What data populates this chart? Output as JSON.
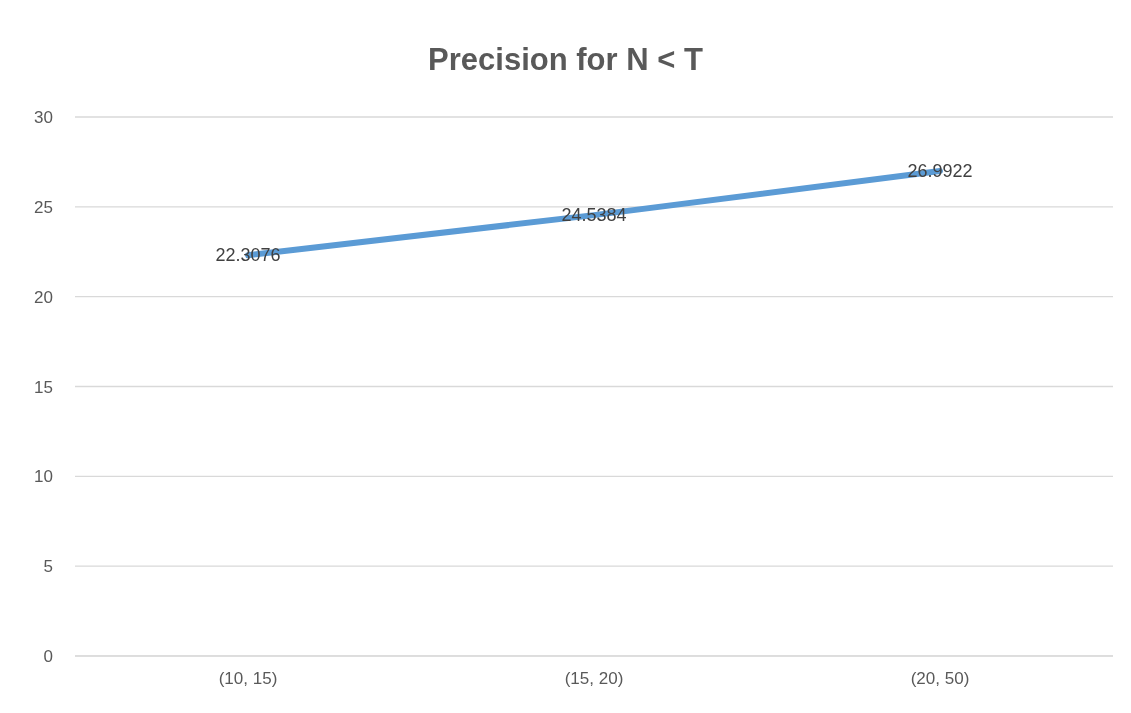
{
  "chart_data": {
    "type": "line",
    "title": "Precision for N < T",
    "categories": [
      "(10, 15)",
      "(15, 20)",
      "(20, 50)"
    ],
    "series": [
      {
        "color": "#5b9bd5",
        "values": [
          22.3076,
          24.5384,
          26.9922
        ]
      }
    ],
    "ylim": [
      0,
      30
    ],
    "yticks": [
      0,
      5,
      10,
      15,
      20,
      25,
      30
    ],
    "grid": "y",
    "data_labels": true,
    "marker": "none",
    "line_style": "solid"
  }
}
